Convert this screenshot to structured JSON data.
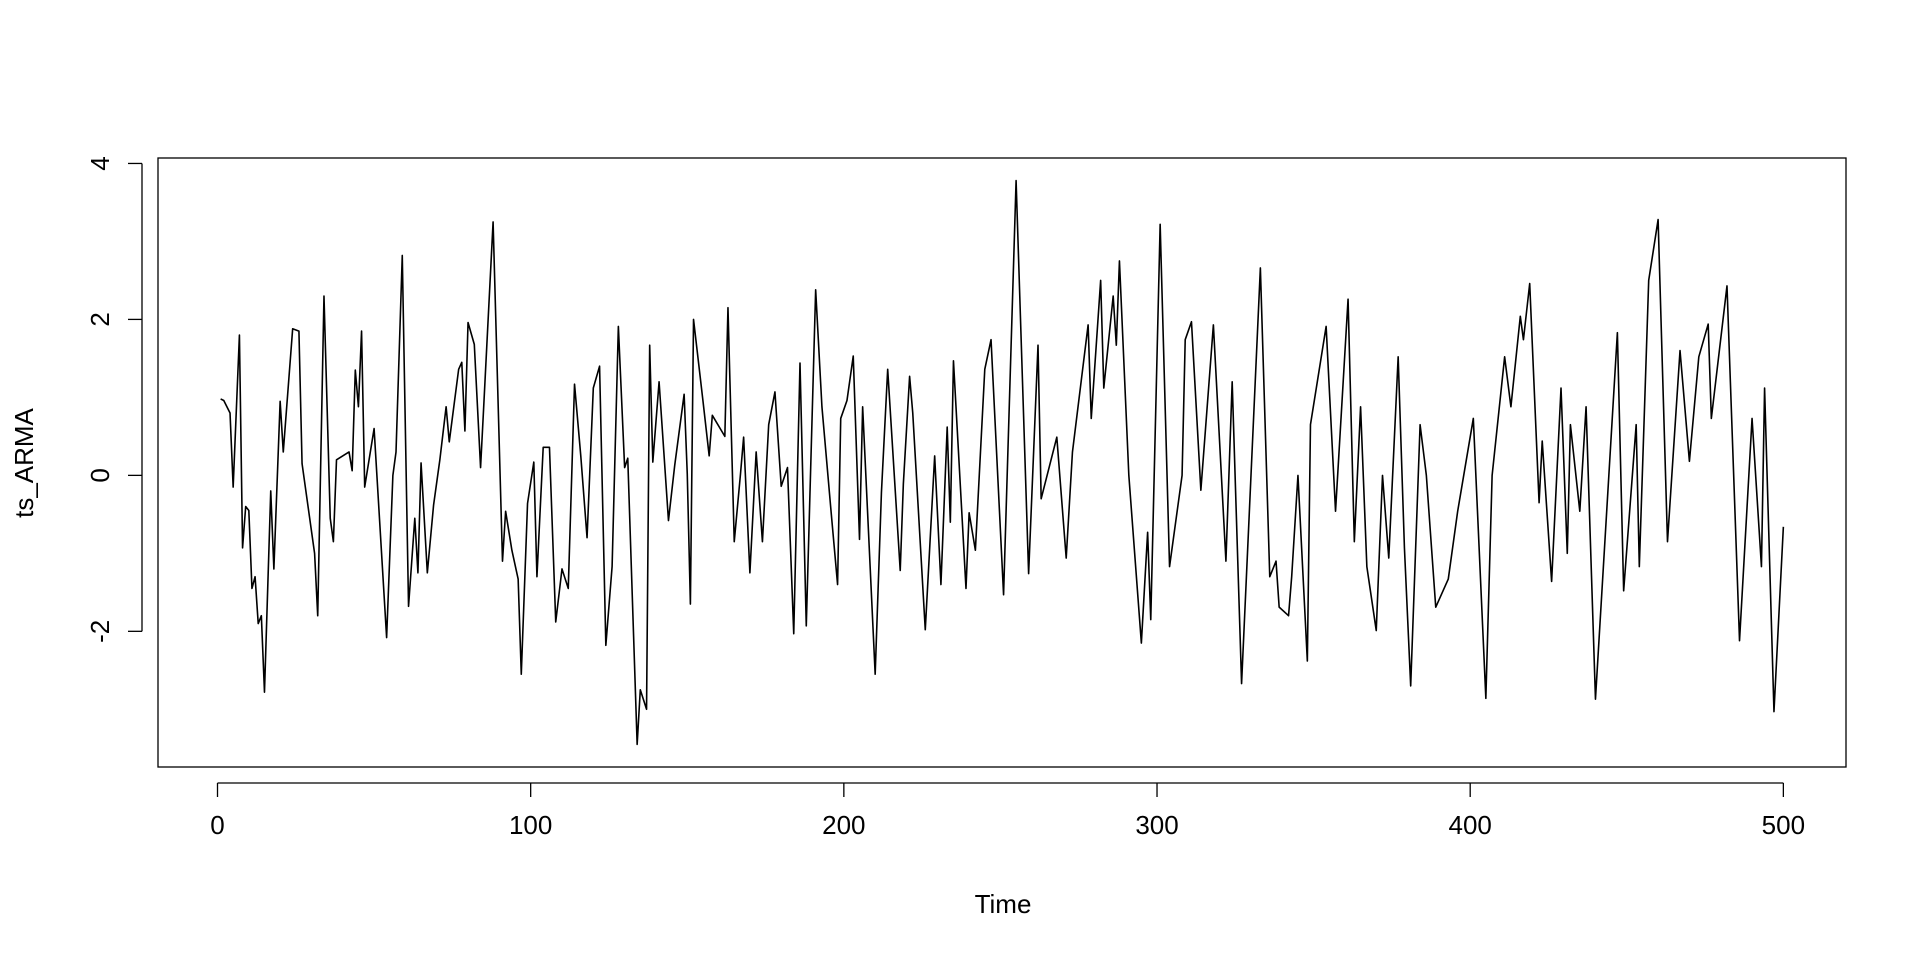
{
  "chart_data": {
    "type": "line",
    "x_label": "Time",
    "y_label": "ts_ARMA",
    "color": "#000000",
    "grid": false,
    "xlim": [
      -19,
      520
    ],
    "ylim": [
      -3.74,
      4.07
    ],
    "xticks": [
      0,
      100,
      200,
      300,
      400,
      500
    ],
    "yticks": [
      -2,
      0,
      2,
      4
    ],
    "x": [
      1,
      2,
      4,
      5,
      7,
      8,
      9,
      10,
      11,
      12,
      13,
      14,
      15,
      17,
      18,
      20,
      21,
      24,
      26,
      27,
      31,
      32,
      34,
      36,
      37,
      38,
      42,
      43,
      44,
      45,
      46,
      47,
      50,
      54,
      56,
      57,
      59,
      61,
      63,
      64,
      65,
      67,
      69,
      71,
      73,
      74,
      77,
      78,
      79,
      80,
      82,
      84,
      85,
      88,
      91,
      92,
      94,
      96,
      97,
      99,
      101,
      102,
      104,
      106,
      108,
      110,
      112,
      114,
      116,
      118,
      120,
      122,
      124,
      126,
      128,
      130,
      131,
      134,
      135,
      137,
      138,
      139,
      141,
      144,
      146,
      149,
      150,
      151,
      152,
      155,
      157,
      158,
      162,
      163,
      165,
      167,
      168,
      170,
      172,
      174,
      176,
      178,
      180,
      182,
      184,
      186,
      188,
      191,
      193,
      196,
      198,
      199,
      201,
      203,
      205,
      206,
      210,
      212,
      214,
      218,
      219,
      221,
      222,
      226,
      229,
      231,
      233,
      234,
      235,
      239,
      240,
      242,
      245,
      247,
      251,
      255,
      259,
      262,
      263,
      268,
      271,
      273,
      278,
      279,
      282,
      283,
      286,
      287,
      288,
      291,
      295,
      297,
      298,
      301,
      304,
      308,
      309,
      311,
      314,
      318,
      322,
      324,
      327,
      333,
      336,
      338,
      339,
      342,
      343,
      345,
      348,
      349,
      354,
      357,
      361,
      363,
      365,
      367,
      370,
      372,
      374,
      377,
      379,
      381,
      384,
      386,
      389,
      393,
      396,
      401,
      405,
      407,
      411,
      413,
      416,
      417,
      419,
      422,
      423,
      426,
      429,
      431,
      432,
      435,
      437,
      440,
      447,
      449,
      453,
      454,
      457,
      460,
      463,
      467,
      470,
      473,
      476,
      477,
      482,
      486,
      490,
      493,
      494,
      497,
      500
    ],
    "values": [
      0.98,
      0.96,
      0.8,
      -0.15,
      1.8,
      -0.93,
      -0.4,
      -0.45,
      -1.45,
      -1.3,
      -1.9,
      -1.8,
      -2.78,
      -0.2,
      -1.2,
      0.95,
      0.3,
      1.88,
      1.85,
      0.15,
      -1.0,
      -1.8,
      2.3,
      -0.55,
      -0.85,
      0.2,
      0.3,
      0.06,
      1.35,
      0.88,
      1.85,
      -0.15,
      0.6,
      -2.08,
      0.0,
      0.3,
      2.82,
      -1.68,
      -0.55,
      -1.25,
      0.16,
      -1.25,
      -0.38,
      0.2,
      0.88,
      0.43,
      1.36,
      1.45,
      0.57,
      1.96,
      1.68,
      0.1,
      0.88,
      3.25,
      -1.1,
      -0.46,
      -0.96,
      -1.33,
      -2.55,
      -0.36,
      0.17,
      -1.3,
      0.36,
      0.36,
      -1.88,
      -1.2,
      -1.45,
      1.17,
      0.25,
      -0.8,
      1.12,
      1.4,
      -2.18,
      -1.17,
      1.91,
      0.1,
      0.22,
      -3.45,
      -2.75,
      -3.0,
      1.67,
      0.17,
      1.2,
      -0.58,
      0.13,
      1.04,
      0.02,
      -1.65,
      2.0,
      0.96,
      0.25,
      0.77,
      0.5,
      2.15,
      -0.85,
      0.02,
      0.49,
      -1.25,
      0.3,
      -0.85,
      0.65,
      1.07,
      -0.14,
      0.1,
      -2.03,
      1.44,
      -1.93,
      2.38,
      0.88,
      -0.5,
      -1.4,
      0.73,
      0.96,
      1.53,
      -0.82,
      0.88,
      -2.55,
      -0.22,
      1.36,
      -1.22,
      -0.11,
      1.27,
      0.8,
      -1.98,
      0.25,
      -1.4,
      0.62,
      -0.6,
      1.47,
      -1.45,
      -0.48,
      -0.96,
      1.36,
      1.74,
      -1.53,
      3.78,
      -1.26,
      1.67,
      -0.3,
      0.49,
      -1.06,
      0.3,
      1.93,
      0.73,
      2.5,
      1.12,
      2.3,
      1.67,
      2.75,
      0.0,
      -2.15,
      -0.73,
      -1.85,
      3.22,
      -1.17,
      0.0,
      1.74,
      1.97,
      -0.19,
      1.93,
      -1.1,
      1.2,
      -2.67,
      2.66,
      -1.3,
      -1.1,
      -1.69,
      -1.8,
      -1.3,
      0.0,
      -2.38,
      0.65,
      1.91,
      -0.46,
      2.26,
      -0.85,
      0.88,
      -1.17,
      -1.99,
      0.0,
      -1.06,
      1.52,
      -0.93,
      -2.7,
      0.65,
      0.0,
      -1.69,
      -1.33,
      -0.46,
      0.73,
      -2.86,
      0.0,
      1.52,
      0.88,
      2.04,
      1.74,
      2.46,
      -0.35,
      0.44,
      -1.36,
      1.12,
      -1.0,
      0.65,
      -0.46,
      0.88,
      -2.87,
      1.83,
      -1.48,
      0.65,
      -1.17,
      2.5,
      3.28,
      -0.85,
      1.6,
      0.18,
      1.52,
      1.94,
      0.73,
      2.43,
      -2.12,
      0.73,
      -1.17,
      1.12,
      -3.03,
      -0.66
    ]
  }
}
